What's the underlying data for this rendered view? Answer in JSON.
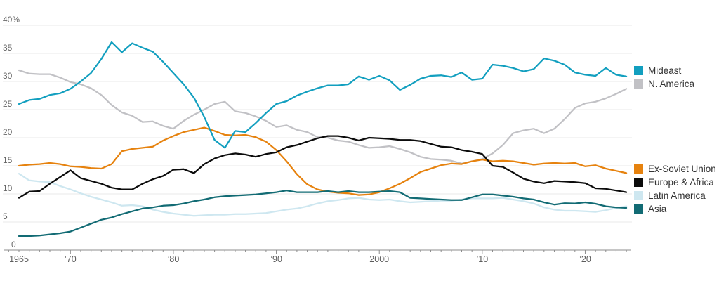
{
  "chart_data": {
    "type": "line",
    "title": "",
    "unit": "percent share",
    "grid": true,
    "legend_position": "right",
    "x": [
      1965,
      1966,
      1967,
      1968,
      1969,
      1970,
      1971,
      1972,
      1973,
      1974,
      1975,
      1976,
      1977,
      1978,
      1979,
      1980,
      1981,
      1982,
      1983,
      1984,
      1985,
      1986,
      1987,
      1988,
      1989,
      1990,
      1991,
      1992,
      1993,
      1994,
      1995,
      1996,
      1997,
      1998,
      1999,
      2000,
      2001,
      2002,
      2003,
      2004,
      2005,
      2006,
      2007,
      2008,
      2009,
      2010,
      2011,
      2012,
      2013,
      2014,
      2015,
      2016,
      2017,
      2018,
      2019,
      2020,
      2021,
      2022,
      2023,
      2024
    ],
    "x_axis": {
      "tick_years_minor_every": 1,
      "tick_years_start": 1964,
      "tick_years_end": 2024,
      "labeled_ticks": [
        {
          "year": 1965,
          "label": "1965"
        },
        {
          "year": 1970,
          "label": "’70"
        },
        {
          "year": 1980,
          "label": "’80"
        },
        {
          "year": 1990,
          "label": "’90"
        },
        {
          "year": 2000,
          "label": "2000"
        },
        {
          "year": 2010,
          "label": "’10"
        },
        {
          "year": 2020,
          "label": "’20"
        }
      ]
    },
    "y_axis": {
      "range": [
        0,
        40
      ],
      "labels": [
        {
          "value": 40,
          "label": "40%"
        },
        {
          "value": 35,
          "label": "35"
        },
        {
          "value": 30,
          "label": "30"
        },
        {
          "value": 25,
          "label": "25"
        },
        {
          "value": 20,
          "label": "20"
        },
        {
          "value": 15,
          "label": "15"
        },
        {
          "value": 10,
          "label": "10"
        },
        {
          "value": 5,
          "label": "5"
        },
        {
          "value": 0,
          "label": "0"
        }
      ]
    },
    "series": [
      {
        "name": "N. America",
        "color": "#c1c1c5",
        "values": [
          32.0,
          31.4,
          31.3,
          31.3,
          30.7,
          29.9,
          29.5,
          28.8,
          27.6,
          25.8,
          24.5,
          23.9,
          22.8,
          22.9,
          22.1,
          21.6,
          23.0,
          24.1,
          25.0,
          26.0,
          26.4,
          24.7,
          24.4,
          23.8,
          23.0,
          21.9,
          22.2,
          21.4,
          21.0,
          20.1,
          20.0,
          19.5,
          19.3,
          18.7,
          18.2,
          18.3,
          18.5,
          18.0,
          17.4,
          16.6,
          16.2,
          16.1,
          15.9,
          15.4,
          15.8,
          16.2,
          17.2,
          18.7,
          20.8,
          21.3,
          21.6,
          20.8,
          21.6,
          23.3,
          25.3,
          26.1,
          26.4,
          27.0,
          27.8,
          28.7
        ]
      },
      {
        "name": "Latin America",
        "color": "#cee7f0",
        "values": [
          13.6,
          12.4,
          12.2,
          12.1,
          11.4,
          10.8,
          10.1,
          9.5,
          9.0,
          8.5,
          7.9,
          8.0,
          7.8,
          7.2,
          6.8,
          6.5,
          6.3,
          6.1,
          6.2,
          6.3,
          6.3,
          6.4,
          6.4,
          6.5,
          6.6,
          6.9,
          7.2,
          7.4,
          7.8,
          8.3,
          8.7,
          8.9,
          9.2,
          9.3,
          9.0,
          8.9,
          9.0,
          8.7,
          8.5,
          8.6,
          8.7,
          8.8,
          8.8,
          9.0,
          9.2,
          9.2,
          9.2,
          9.3,
          9.0,
          8.7,
          8.3,
          7.6,
          7.2,
          7.0,
          7.0,
          6.9,
          6.8,
          7.1,
          7.5,
          7.8
        ]
      },
      {
        "name": "Ex-Soviet Union",
        "color": "#e6820e",
        "values": [
          15.0,
          15.2,
          15.3,
          15.5,
          15.3,
          14.9,
          14.8,
          14.6,
          14.5,
          15.3,
          17.6,
          18.0,
          18.2,
          18.4,
          19.5,
          20.3,
          21.0,
          21.4,
          21.8,
          21.2,
          20.5,
          20.4,
          20.5,
          20.1,
          19.3,
          17.8,
          15.8,
          13.5,
          11.7,
          10.8,
          10.4,
          10.2,
          10.1,
          9.8,
          9.9,
          10.3,
          11.0,
          11.8,
          12.8,
          13.9,
          14.5,
          15.1,
          15.4,
          15.3,
          15.8,
          16.1,
          15.8,
          15.9,
          15.8,
          15.5,
          15.2,
          15.4,
          15.5,
          15.4,
          15.5,
          14.9,
          15.1,
          14.5,
          14.1,
          13.7
        ]
      },
      {
        "name": "Mideast",
        "color": "#129fbf",
        "values": [
          26.0,
          26.7,
          26.9,
          27.6,
          27.9,
          28.7,
          30.0,
          31.5,
          34.0,
          37.0,
          35.2,
          36.8,
          36.0,
          35.3,
          33.5,
          31.5,
          29.5,
          27.1,
          23.7,
          19.6,
          18.2,
          21.2,
          21.0,
          22.6,
          24.4,
          26.0,
          26.5,
          27.5,
          28.2,
          28.8,
          29.3,
          29.3,
          29.5,
          30.9,
          30.3,
          31.0,
          30.2,
          28.5,
          29.4,
          30.5,
          31.0,
          31.1,
          30.8,
          31.6,
          30.3,
          30.5,
          33.0,
          32.8,
          32.4,
          31.8,
          32.2,
          34.1,
          33.7,
          33.0,
          31.6,
          31.2,
          31.0,
          32.4,
          31.2,
          30.9
        ]
      },
      {
        "name": "Asia",
        "color": "#126b74",
        "values": [
          2.5,
          2.5,
          2.6,
          2.8,
          3.0,
          3.3,
          4.0,
          4.7,
          5.4,
          5.8,
          6.4,
          6.9,
          7.4,
          7.6,
          7.9,
          8.0,
          8.3,
          8.7,
          9.0,
          9.4,
          9.6,
          9.7,
          9.8,
          9.9,
          10.1,
          10.3,
          10.6,
          10.3,
          10.3,
          10.3,
          10.5,
          10.3,
          10.5,
          10.3,
          10.3,
          10.4,
          10.5,
          10.3,
          9.3,
          9.2,
          9.1,
          9.0,
          8.9,
          8.9,
          9.4,
          9.9,
          9.9,
          9.7,
          9.5,
          9.2,
          9.0,
          8.5,
          8.1,
          8.35,
          8.3,
          8.5,
          8.25,
          7.8,
          7.6,
          7.5
        ]
      },
      {
        "name": "Europe & Africa",
        "color": "#0c0c0c",
        "values": [
          9.3,
          10.4,
          10.5,
          11.8,
          13.0,
          14.2,
          12.8,
          12.3,
          11.8,
          11.1,
          10.8,
          10.8,
          11.8,
          12.6,
          13.2,
          14.3,
          14.4,
          13.7,
          15.3,
          16.3,
          16.9,
          17.2,
          17.0,
          16.6,
          17.1,
          17.4,
          18.3,
          18.7,
          19.3,
          19.9,
          20.3,
          20.3,
          20.0,
          19.5,
          20.0,
          19.9,
          19.8,
          19.6,
          19.6,
          19.4,
          18.9,
          18.4,
          18.3,
          17.8,
          17.5,
          17.1,
          15.0,
          14.8,
          13.8,
          12.7,
          12.2,
          11.9,
          12.3,
          12.2,
          12.1,
          11.9,
          11.0,
          10.9,
          10.6,
          10.3
        ]
      }
    ],
    "legend_groups": [
      {
        "top": 91,
        "entries": [
          "Mideast",
          "N. America"
        ]
      },
      {
        "top": 231,
        "entries": [
          "Ex-Soviet Union",
          "Europe & Africa",
          "Latin America",
          "Asia"
        ]
      }
    ]
  }
}
